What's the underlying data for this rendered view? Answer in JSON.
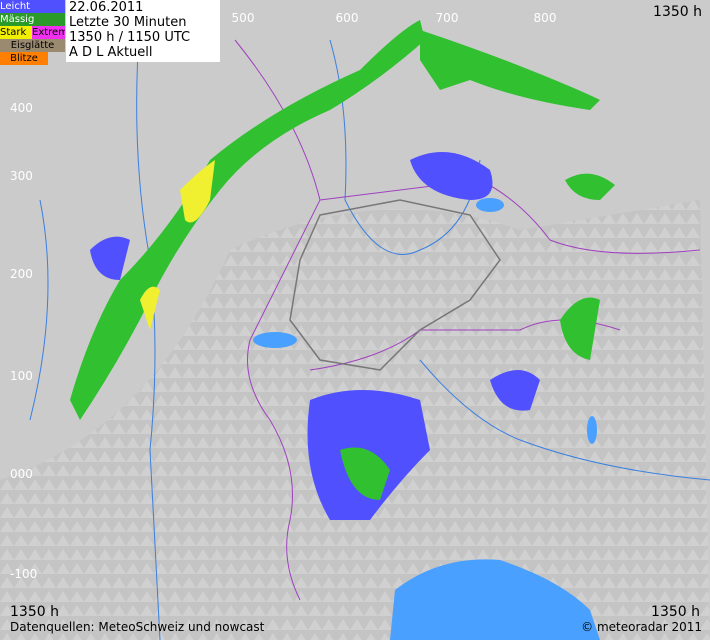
{
  "legend": [
    "Leicht",
    "Mässig",
    "Stark",
    "Extrem",
    "Eisglätte",
    "Blitze"
  ],
  "header": [
    "22.06.2011",
    "Letzte 30 Minuten",
    "1350 h  /  1150 UTC",
    "A D L    Aktuell"
  ],
  "corners": [
    "1350 h",
    "1350 h",
    "1350 h"
  ],
  "x_labels": [
    "500",
    "600",
    "700",
    "800"
  ],
  "y_labels": [
    "400",
    "300",
    "200",
    "100",
    "000",
    "-100"
  ],
  "footer": {
    "sources": "Datenquellen: MeteoSchweiz und nowcast",
    "copyright": "© meteoradar 2011"
  }
}
